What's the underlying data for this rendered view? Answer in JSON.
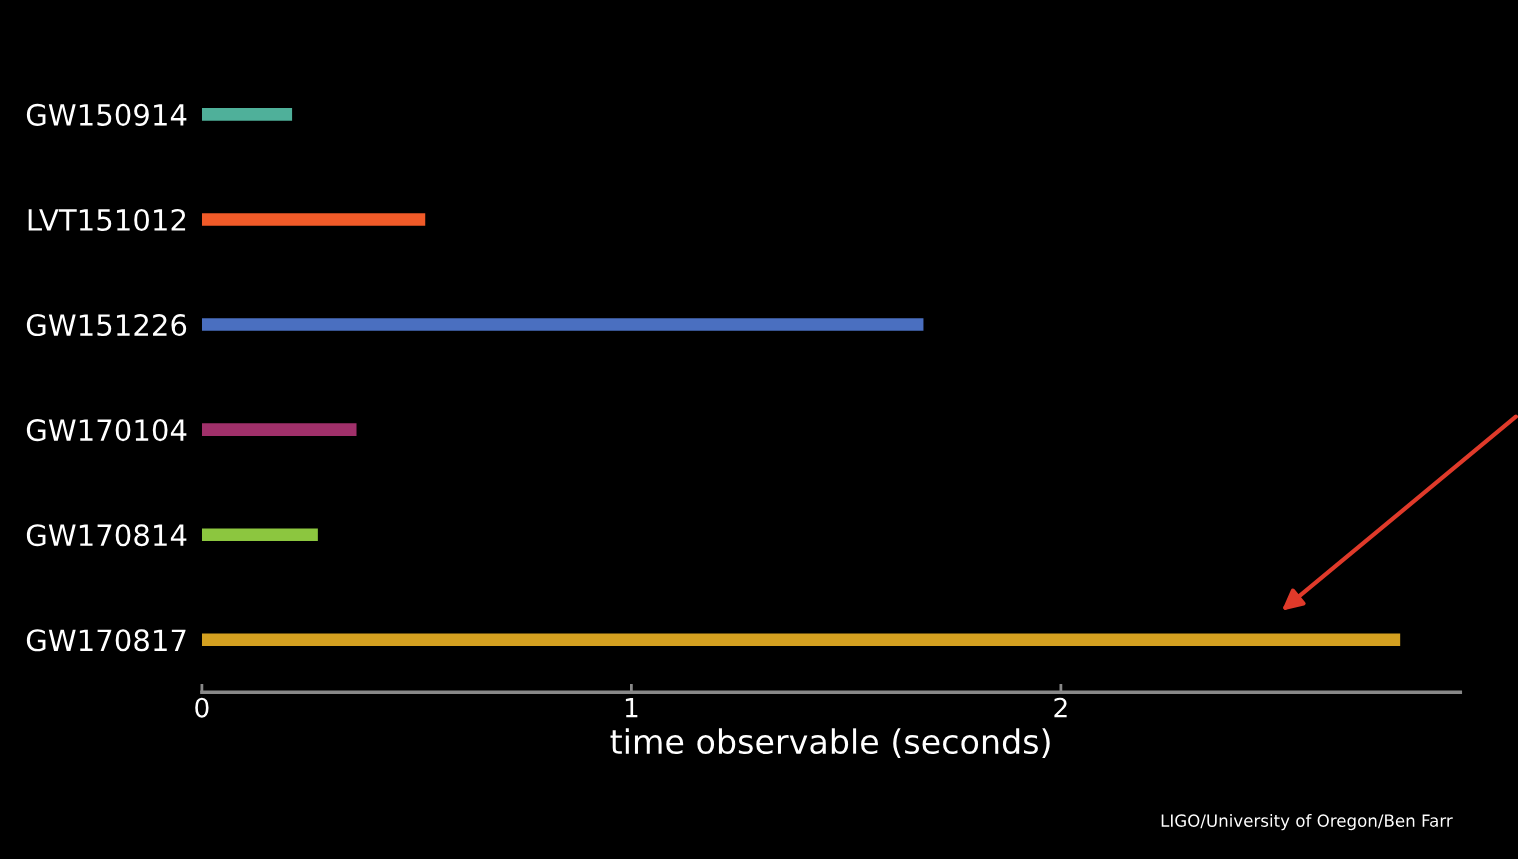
{
  "chart_data": {
    "type": "bar",
    "orientation": "horizontal",
    "xlabel": "time observable (seconds)",
    "categories": [
      "GW150914",
      "LVT151012",
      "GW151226",
      "GW170104",
      "GW170814",
      "GW170817"
    ],
    "values": [
      0.21,
      0.52,
      1.68,
      0.36,
      0.27,
      2.79
    ],
    "colors": [
      "#4fb09a",
      "#f05a28",
      "#4a6fc0",
      "#a0306a",
      "#8cc63f",
      "#d4a020"
    ],
    "xlim": [
      0,
      2.93
    ],
    "xticks": [
      0,
      1,
      2
    ],
    "grid": false,
    "legend": false,
    "annotations": [
      "LIGO/University of Oregon/Ben Farr"
    ]
  }
}
